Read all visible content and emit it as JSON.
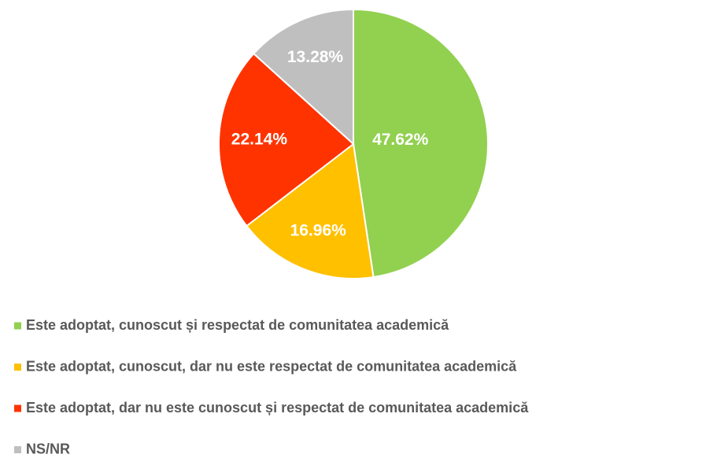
{
  "chart_data": {
    "type": "pie",
    "categories": [
      "Este adoptat, cunoscut și respectat de comunitatea academică",
      "Este adoptat, cunoscut, dar nu este respectat de comunitatea academică",
      "Este adoptat, dar nu este cunoscut și respectat de comunitatea academică",
      "NS/NR"
    ],
    "values": [
      47.62,
      16.96,
      22.14,
      13.28
    ],
    "value_labels": [
      "47.62%",
      "16.96%",
      "22.14%",
      "13.28%"
    ],
    "colors": [
      "#92d050",
      "#ffc000",
      "#ff3300",
      "#bfbfbf"
    ],
    "legend": "bottom"
  }
}
